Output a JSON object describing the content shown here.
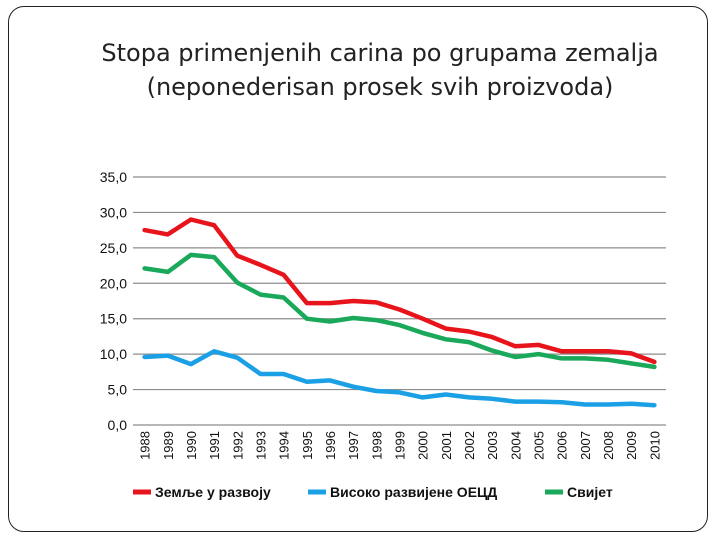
{
  "chart_data": {
    "type": "line",
    "title": "Stopa primenjenih carina po grupama zemalja",
    "subtitle": "(neponederisan prosek svih proizvoda)",
    "xlabel": "",
    "ylabel": "",
    "ylim": [
      0,
      35
    ],
    "y_ticks": [
      "0,0",
      "5,0",
      "10,0",
      "15,0",
      "20,0",
      "25,0",
      "30,0",
      "35,0"
    ],
    "categories": [
      "1988",
      "1989",
      "1990",
      "1991",
      "1992",
      "1993",
      "1994",
      "1995",
      "1996",
      "1997",
      "1998",
      "1999",
      "2000",
      "2001",
      "2002",
      "2003",
      "2004",
      "2005",
      "2006",
      "2007",
      "2008",
      "2009",
      "2010"
    ],
    "grid": true,
    "legend_position": "bottom",
    "series": [
      {
        "name": "Земље у развоју",
        "color": "#e8141b",
        "values": [
          27.5,
          26.9,
          29.0,
          28.2,
          23.9,
          22.6,
          21.2,
          17.2,
          17.2,
          17.5,
          17.3,
          16.3,
          15.0,
          13.6,
          13.2,
          12.4,
          11.1,
          11.3,
          10.4,
          10.4,
          10.4,
          10.1,
          8.9
        ]
      },
      {
        "name": "Високо развијене ОЕЦД",
        "color": "#1ba0e6",
        "values": [
          9.6,
          9.8,
          8.6,
          10.4,
          9.5,
          7.2,
          7.2,
          6.1,
          6.3,
          5.4,
          4.8,
          4.6,
          3.9,
          4.3,
          3.9,
          3.7,
          3.3,
          3.3,
          3.2,
          2.9,
          2.9,
          3.0,
          2.8
        ]
      },
      {
        "name": "Свијет",
        "color": "#1aa85a",
        "values": [
          22.1,
          21.6,
          24.0,
          23.7,
          20.1,
          18.4,
          18.0,
          15.0,
          14.6,
          15.1,
          14.8,
          14.1,
          13.0,
          12.1,
          11.7,
          10.5,
          9.6,
          10.0,
          9.4,
          9.4,
          9.2,
          8.7,
          8.2
        ]
      }
    ]
  }
}
